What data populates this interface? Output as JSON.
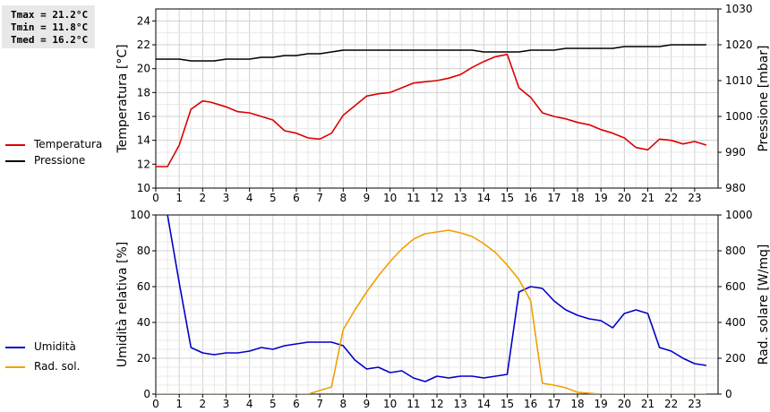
{
  "stats": {
    "tmax": "Tmax = 21.2°C",
    "tmin": "Tmin = 11.8°C",
    "tmed": "Tmed = 16.2°C"
  },
  "legend_top": [
    {
      "label": "Temperatura",
      "color": "#dd0000"
    },
    {
      "label": "Pressione",
      "color": "#000000"
    }
  ],
  "legend_bottom": [
    {
      "label": "Umidità",
      "color": "#0000cc"
    },
    {
      "label": "Rad. sol.",
      "color": "#f0a000"
    }
  ],
  "chart_data": [
    {
      "type": "line",
      "ylabel": "Temperatura [°C]",
      "y2label": "Pressione [mbar]",
      "xlim": [
        0,
        24
      ],
      "ylim": [
        10,
        25
      ],
      "y2lim": [
        980,
        1030
      ],
      "xticks": [
        "0",
        "1",
        "2",
        "3",
        "4",
        "5",
        "6",
        "7",
        "8",
        "9",
        "10",
        "11",
        "12",
        "13",
        "14",
        "15",
        "16",
        "17",
        "18",
        "19",
        "20",
        "21",
        "22",
        "23"
      ],
      "yticks": [
        "10",
        "12",
        "14",
        "16",
        "18",
        "20",
        "22",
        "24"
      ],
      "y2ticks": [
        "980",
        "990",
        "1000",
        "1010",
        "1020",
        "1030"
      ],
      "grid": true,
      "series": [
        {
          "name": "Temperatura",
          "axis": "left",
          "color": "#dd0000",
          "x": [
            0,
            0.5,
            1,
            1.5,
            2,
            2.33,
            2.67,
            3,
            3.5,
            4,
            4.5,
            5,
            5.5,
            6,
            6.5,
            7,
            7.5,
            8,
            8.5,
            9,
            9.5,
            10,
            10.5,
            11,
            11.5,
            12,
            12.5,
            13,
            13.5,
            14,
            14.5,
            15,
            15.5,
            16,
            16.5,
            17,
            17.5,
            18,
            18.5,
            19,
            19.5,
            20,
            20.5,
            21,
            21.5,
            22,
            22.5,
            23,
            23.5
          ],
          "y": [
            11.8,
            11.8,
            13.6,
            16.6,
            17.3,
            17.2,
            17.0,
            16.8,
            16.4,
            16.3,
            16.0,
            15.7,
            14.8,
            14.6,
            14.2,
            14.1,
            14.6,
            16.1,
            16.9,
            17.7,
            17.9,
            18.0,
            18.4,
            18.8,
            18.9,
            19.0,
            19.2,
            19.5,
            20.1,
            20.6,
            21.0,
            21.2,
            18.4,
            17.6,
            16.3,
            16.0,
            15.8,
            15.5,
            15.3,
            14.9,
            14.6,
            14.2,
            13.4,
            13.2,
            14.1,
            14.0,
            13.7,
            13.9,
            13.6
          ]
        },
        {
          "name": "Pressione",
          "axis": "right",
          "color": "#000000",
          "x": [
            0,
            1,
            1.5,
            2.5,
            3,
            4,
            4.5,
            5,
            5.5,
            6,
            6.5,
            7,
            7.5,
            8,
            8.5,
            13,
            13.5,
            14,
            15,
            15.5,
            16,
            17,
            17.5,
            19,
            19.5,
            20,
            21,
            21.5,
            22,
            23,
            23.5
          ],
          "y": [
            1016,
            1016,
            1015.5,
            1015.5,
            1016,
            1016,
            1016.5,
            1016.5,
            1017,
            1017,
            1017.5,
            1017.5,
            1018,
            1018.5,
            1018.5,
            1018.5,
            1018.5,
            1018,
            1018,
            1018,
            1018.5,
            1018.5,
            1019,
            1019,
            1019,
            1019.5,
            1019.5,
            1019.5,
            1020,
            1020,
            1020
          ]
        }
      ]
    },
    {
      "type": "line",
      "ylabel": "Umidità relativa [%]",
      "y2label": "Rad. solare [W/mq]",
      "xlim": [
        0,
        24
      ],
      "ylim": [
        0,
        100
      ],
      "y2lim": [
        0,
        1000
      ],
      "xticks": [
        "0",
        "1",
        "2",
        "3",
        "4",
        "5",
        "6",
        "7",
        "8",
        "9",
        "10",
        "11",
        "12",
        "13",
        "14",
        "15",
        "16",
        "17",
        "18",
        "19",
        "20",
        "21",
        "22",
        "23"
      ],
      "yticks": [
        "0",
        "20",
        "40",
        "60",
        "80",
        "100"
      ],
      "y2ticks": [
        "0",
        "200",
        "400",
        "600",
        "800",
        "1000"
      ],
      "grid": true,
      "series": [
        {
          "name": "Umidità",
          "axis": "left",
          "color": "#0000cc",
          "x": [
            0.5,
            1,
            1.5,
            2,
            2.5,
            3,
            3.5,
            4,
            4.5,
            5,
            5.5,
            6,
            6.5,
            7,
            7.5,
            8,
            8.5,
            9,
            9.5,
            10,
            10.5,
            11,
            11.5,
            12,
            12.5,
            13,
            13.5,
            14,
            14.5,
            15,
            15.5,
            16,
            16.5,
            17,
            17.5,
            18,
            18.5,
            19,
            19.5,
            20,
            20.5,
            21,
            21.5,
            22,
            22.5,
            23,
            23.5
          ],
          "y": [
            100,
            62,
            26,
            23,
            22,
            23,
            23,
            24,
            26,
            25,
            27,
            28,
            29,
            29,
            29,
            27,
            19,
            14,
            15,
            12,
            13,
            9,
            7,
            10,
            9,
            10,
            10,
            9,
            10,
            11,
            57,
            60,
            59,
            52,
            47,
            44,
            42,
            41,
            37,
            45,
            47,
            45,
            26,
            24,
            20,
            17,
            16
          ]
        },
        {
          "name": "Rad. sol.",
          "axis": "right",
          "color": "#f0a000",
          "x": [
            0,
            1,
            2,
            3,
            4,
            5,
            6,
            6.5,
            7,
            7.5,
            8,
            8.5,
            9,
            9.5,
            10,
            10.5,
            11,
            11.5,
            12,
            12.5,
            13,
            13.5,
            14,
            14.5,
            15,
            15.5,
            16,
            16.5,
            17,
            17.5,
            18,
            19,
            20,
            21,
            22,
            23,
            23.5
          ],
          "y": [
            0,
            0,
            0,
            0,
            0,
            0,
            0,
            0,
            20,
            40,
            360,
            470,
            570,
            660,
            740,
            810,
            865,
            895,
            905,
            915,
            900,
            880,
            840,
            790,
            720,
            640,
            520,
            60,
            50,
            35,
            10,
            0,
            0,
            0,
            0,
            0,
            0
          ]
        }
      ]
    }
  ]
}
